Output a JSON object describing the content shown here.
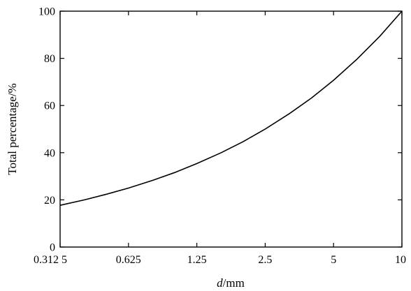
{
  "chart_data": {
    "type": "line",
    "xlabel_prefix": "d",
    "xlabel_suffix": "/mm",
    "ylabel": "Total percentage/%",
    "x_scale": "log2",
    "xlim": [
      0.3125,
      10
    ],
    "ylim": [
      0,
      100
    ],
    "x_ticks": [
      0.3125,
      0.625,
      1.25,
      2.5,
      5,
      10
    ],
    "x_tick_labels": [
      "0.312 5",
      "0.625",
      "1.25",
      "2.5",
      "5",
      "10"
    ],
    "y_ticks": [
      0,
      20,
      40,
      60,
      80,
      100
    ],
    "y_tick_labels": [
      "0",
      "20",
      "40",
      "60",
      "80",
      "100"
    ],
    "grid": false,
    "line_color": "#000000",
    "series": [
      {
        "x": [
          0.3125,
          0.4,
          0.5,
          0.625,
          0.8,
          1.0,
          1.25,
          1.6,
          2.0,
          2.5,
          3.2,
          4.0,
          5.0,
          6.3,
          8.0,
          10
        ],
        "y": [
          17.7,
          20.0,
          22.4,
          25.0,
          28.3,
          31.6,
          35.4,
          40.0,
          44.7,
          50.0,
          56.6,
          63.2,
          70.7,
          79.4,
          89.4,
          100
        ]
      }
    ]
  }
}
